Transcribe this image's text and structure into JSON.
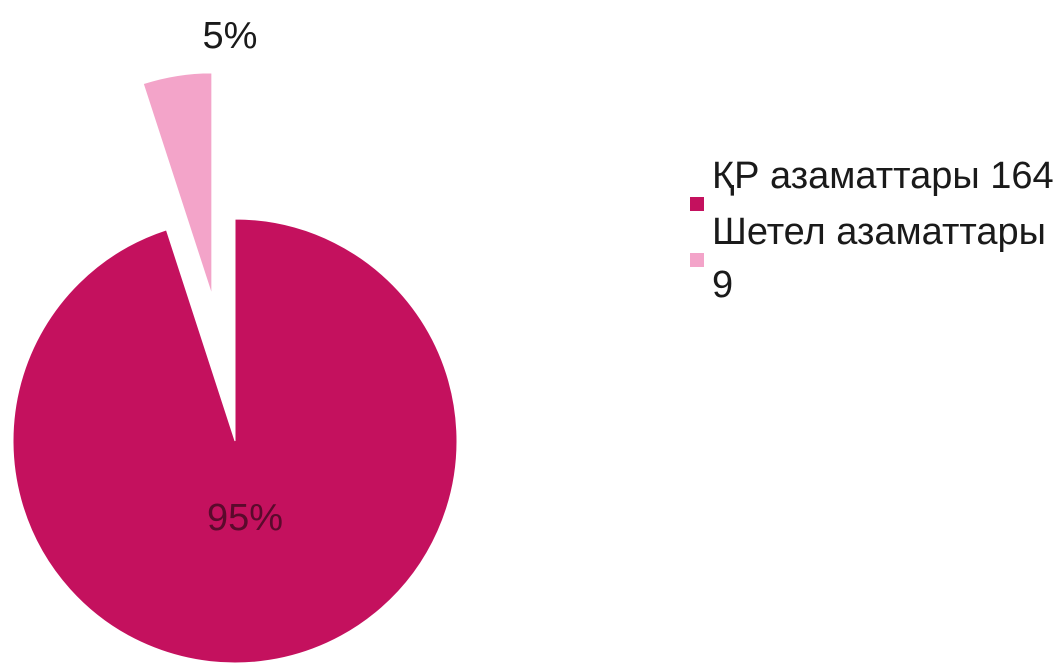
{
  "chart_data": {
    "type": "pie",
    "categories": [
      "ҚР азаматтары 164",
      "Шетел азаматтары 9"
    ],
    "values": [
      95,
      5
    ],
    "value_labels": [
      "95%",
      "5%"
    ],
    "colors": [
      "#c4115e",
      "#f3a4c9"
    ]
  }
}
